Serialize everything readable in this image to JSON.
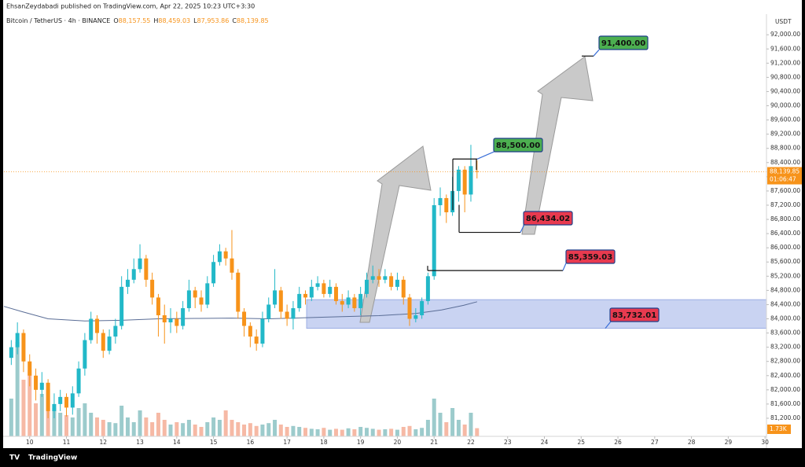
{
  "chart_data": {
    "type": "candlestick",
    "header_text": "EhsanZeydabadi published on TradingView.com, Apr 22, 2025 10:23 UTC+3:30",
    "symbol": "Bitcoin / TetherUS · 4h · BINANCE",
    "ohlc_legend": [
      {
        "key": "O",
        "text": "88,157.55"
      },
      {
        "key": "H",
        "text": "88,459.03"
      },
      {
        "key": "L",
        "text": "87,953.86"
      },
      {
        "key": "C",
        "text": "88,139.85"
      }
    ],
    "currency": "USDT",
    "last_price_label": "88,139.85",
    "countdown": "01:06:47",
    "last_volume_label": "1.73K",
    "brand": "TradingView",
    "up_color": "#22b8c8",
    "down_color": "#f7931a",
    "up_volume_color": "#9ccbcc",
    "down_volume_color": "#f6b9a5",
    "grid": false,
    "xlim": [
      9.3,
      30.04
    ],
    "xticks": [
      10,
      11,
      12,
      13,
      14,
      15,
      16,
      17,
      18,
      19,
      20,
      21,
      22,
      23,
      24,
      25,
      26,
      27,
      28,
      29,
      30
    ],
    "ylim": [
      80690,
      92580
    ],
    "yticks": [
      {
        "value": 81200,
        "label": "81,200.00"
      },
      {
        "value": 81600,
        "label": "81,600.00"
      },
      {
        "value": 82000,
        "label": "82,000.00"
      },
      {
        "value": 82400,
        "label": "82,400.00"
      },
      {
        "value": 82800,
        "label": "82,800.00"
      },
      {
        "value": 83200,
        "label": "83,200.00"
      },
      {
        "value": 83600,
        "label": "83,600.00"
      },
      {
        "value": 84000,
        "label": "84,000.00"
      },
      {
        "value": 84400,
        "label": "84,400.00"
      },
      {
        "value": 84800,
        "label": "84,800.00"
      },
      {
        "value": 85200,
        "label": "85,200.00"
      },
      {
        "value": 85600,
        "label": "85,600.00"
      },
      {
        "value": 86000,
        "label": "86,000.00"
      },
      {
        "value": 86400,
        "label": "86,400.00"
      },
      {
        "value": 86800,
        "label": "86,800.00"
      },
      {
        "value": 87200,
        "label": "87,200.00"
      },
      {
        "value": 87600,
        "label": "87,600.00"
      },
      {
        "value": 88000,
        "label": "88,000.00"
      },
      {
        "value": 88400,
        "label": "88,400.00"
      },
      {
        "value": 88800,
        "label": "88,800.00"
      },
      {
        "value": 89200,
        "label": "89,200.00"
      },
      {
        "value": 89600,
        "label": "89,600.00"
      },
      {
        "value": 90000,
        "label": "90,000.00"
      },
      {
        "value": 90400,
        "label": "90,400.00"
      },
      {
        "value": 90800,
        "label": "90,800.00"
      },
      {
        "value": 91200,
        "label": "91,200.00"
      },
      {
        "value": 91600,
        "label": "91,600.00"
      },
      {
        "value": 92000,
        "label": "92,000.00"
      }
    ],
    "volume_lim": [
      0,
      25000
    ],
    "candles": {
      "x": [
        9.5,
        9.667,
        9.833,
        10,
        10.167,
        10.333,
        10.5,
        10.667,
        10.833,
        11,
        11.167,
        11.333,
        11.5,
        11.667,
        11.833,
        12,
        12.167,
        12.333,
        12.5,
        12.667,
        12.833,
        13,
        13.167,
        13.333,
        13.5,
        13.667,
        13.833,
        14,
        14.167,
        14.333,
        14.5,
        14.667,
        14.833,
        15,
        15.167,
        15.333,
        15.5,
        15.667,
        15.833,
        16,
        16.167,
        16.333,
        16.5,
        16.667,
        16.833,
        17,
        17.167,
        17.333,
        17.5,
        17.667,
        17.833,
        18,
        18.167,
        18.333,
        18.5,
        18.667,
        18.833,
        19,
        19.167,
        19.333,
        19.5,
        19.667,
        19.833,
        20,
        20.167,
        20.333,
        20.5,
        20.667,
        20.833,
        21,
        21.167,
        21.333,
        21.5,
        21.667,
        21.833,
        22,
        22.167
      ],
      "open": [
        82900,
        83200,
        83600,
        82800,
        82400,
        82000,
        82200,
        81400,
        81600,
        81800,
        81500,
        81900,
        82600,
        83400,
        84000,
        83600,
        83100,
        83500,
        83800,
        84900,
        85100,
        85400,
        85700,
        85100,
        84600,
        84100,
        83900,
        84000,
        83800,
        84300,
        84800,
        84600,
        84400,
        85000,
        85600,
        85900,
        85700,
        85300,
        84200,
        83800,
        83500,
        83300,
        84000,
        84400,
        84800,
        84200,
        84000,
        84300,
        84700,
        84600,
        84900,
        85000,
        84700,
        84900,
        84500,
        84400,
        84600,
        84300,
        84700,
        85100,
        85200,
        85100,
        85200,
        84900,
        85100,
        84600,
        84000,
        84100,
        84500,
        85200,
        87200,
        87400,
        87000,
        87600,
        88200,
        87500,
        88157.55
      ],
      "high": [
        83400,
        83900,
        83700,
        83000,
        82600,
        82500,
        82300,
        81900,
        82000,
        81900,
        82100,
        82800,
        83600,
        84200,
        84100,
        83700,
        83700,
        84000,
        85200,
        85400,
        85700,
        86100,
        85800,
        85300,
        84700,
        84400,
        84300,
        84200,
        84500,
        85100,
        84900,
        84800,
        85200,
        85800,
        86100,
        86000,
        86500,
        85400,
        84300,
        83900,
        83700,
        84200,
        84600,
        85400,
        84900,
        84400,
        84500,
        84900,
        84800,
        85100,
        85200,
        85100,
        85100,
        85000,
        84700,
        84800,
        84700,
        84900,
        85300,
        85500,
        85400,
        85400,
        85300,
        85300,
        85200,
        84700,
        84300,
        84600,
        85300,
        87400,
        87700,
        87500,
        88000,
        88300,
        88300,
        88900,
        88459.03
      ],
      "low": [
        82700,
        83000,
        82500,
        82100,
        81700,
        81800,
        81200,
        81200,
        81400,
        81250,
        81300,
        81800,
        82400,
        83300,
        83300,
        82900,
        83000,
        83300,
        83700,
        84700,
        85000,
        85300,
        84900,
        84400,
        83500,
        83300,
        83600,
        83600,
        83700,
        84200,
        84300,
        84200,
        84300,
        84900,
        85500,
        85500,
        85100,
        84000,
        83500,
        83200,
        83100,
        83200,
        83900,
        84300,
        84000,
        83800,
        83700,
        84200,
        84400,
        84500,
        84800,
        84600,
        84600,
        84400,
        84200,
        84300,
        84200,
        84100,
        84600,
        85000,
        84900,
        85000,
        84800,
        84800,
        84400,
        83800,
        83900,
        84000,
        84400,
        85100,
        86900,
        86700,
        86900,
        87300,
        87000,
        87300,
        87953.86
      ],
      "close": [
        83200,
        83600,
        82800,
        82400,
        82000,
        82200,
        81400,
        81600,
        81800,
        81500,
        81900,
        82600,
        83400,
        84000,
        83600,
        83100,
        83500,
        83800,
        84900,
        85100,
        85400,
        85700,
        85100,
        84600,
        84100,
        83900,
        84000,
        83800,
        84300,
        84800,
        84600,
        84400,
        85000,
        85600,
        85900,
        85700,
        85300,
        84200,
        83800,
        83500,
        83300,
        84000,
        84400,
        84800,
        84200,
        84000,
        84300,
        84700,
        84600,
        84900,
        85000,
        84700,
        84900,
        84500,
        84400,
        84600,
        84300,
        84700,
        85100,
        85200,
        85100,
        85200,
        84900,
        85100,
        84600,
        84000,
        84100,
        84500,
        85200,
        87200,
        87400,
        87000,
        87600,
        88200,
        87500,
        88300,
        88139.85
      ],
      "volume": [
        8000,
        20000,
        12000,
        14000,
        7000,
        9000,
        10000,
        6000,
        5000,
        4500,
        4000,
        6000,
        7000,
        5000,
        4000,
        3500,
        3000,
        2800,
        6500,
        4000,
        3000,
        5500,
        4000,
        3000,
        5000,
        3500,
        2500,
        3000,
        2800,
        3500,
        2500,
        2000,
        3000,
        4000,
        3500,
        5500,
        3500,
        3000,
        2500,
        2800,
        2200,
        2500,
        2800,
        3500,
        2500,
        2000,
        2200,
        2000,
        1800,
        1600,
        1500,
        1800,
        1400,
        1600,
        1400,
        1700,
        1500,
        2000,
        1800,
        1600,
        1400,
        1500,
        1600,
        1400,
        2000,
        2200,
        1500,
        1800,
        3500,
        8000,
        5000,
        3000,
        6000,
        3500,
        2500,
        5000,
        1730
      ]
    },
    "moving_average": {
      "color": "#5a6d96",
      "x": [
        9.3,
        9.8,
        10.5,
        11.5,
        12.5,
        13.5,
        14.5,
        15.5,
        16.5,
        17.5,
        18.5,
        19.5,
        20.5,
        21.2,
        21.8,
        22.17
      ],
      "values": [
        84350,
        84200,
        84000,
        83940,
        83960,
        84000,
        84010,
        84020,
        84000,
        84030,
        84060,
        84090,
        84150,
        84250,
        84380,
        84480
      ]
    },
    "zone": {
      "top": 84540,
      "color": "#c9d3f2"
    },
    "annotations": [
      {
        "value": 91400,
        "label": "91,400.00",
        "color": "#4caf50"
      },
      {
        "value": 88500,
        "label": "88,500.00",
        "color": "#4caf50"
      },
      {
        "value": 86434.02,
        "label": "86,434.02",
        "color": "#e83a4f"
      },
      {
        "value": 85359.03,
        "label": "85,359.03",
        "color": "#e83a4f"
      },
      {
        "value": 83732.01,
        "label": "83,732.01",
        "color": "#e83a4f"
      }
    ]
  }
}
